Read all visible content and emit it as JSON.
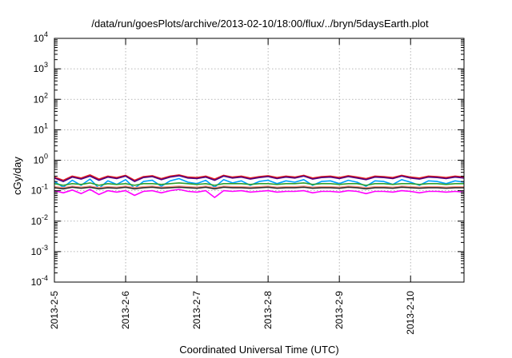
{
  "chart_data": {
    "type": "line",
    "title": "/data/run/goesPlots/archive/2013-02-10/18:00/flux/../bryn/5daysEarth.plot",
    "xlabel": "Coordinated Universal Time (UTC)",
    "ylabel": "cGy/day",
    "yscale": "log",
    "ylim": [
      0.0001,
      10000
    ],
    "xlim": [
      "2013-02-05T00:00",
      "2013-02-10T18:00"
    ],
    "x_ticks": [
      "2013-2-5",
      "2013-2-6",
      "2013-2-7",
      "2013-2-8",
      "2013-2-9",
      "2013-2-10"
    ],
    "y_ticks": [
      {
        "base": "10",
        "exp": "-4",
        "value": 0.0001
      },
      {
        "base": "10",
        "exp": "-3",
        "value": 0.001
      },
      {
        "base": "10",
        "exp": "-2",
        "value": 0.01
      },
      {
        "base": "10",
        "exp": "-1",
        "value": 0.1
      },
      {
        "base": "10",
        "exp": "0",
        "value": 1
      },
      {
        "base": "10",
        "exp": "1",
        "value": 10
      },
      {
        "base": "10",
        "exp": "2",
        "value": 100
      },
      {
        "base": "10",
        "exp": "3",
        "value": 1000
      },
      {
        "base": "10",
        "exp": "4",
        "value": 10000
      }
    ],
    "grid": true,
    "x": [
      "2013-02-05T00:00",
      "2013-02-05T03:00",
      "2013-02-05T06:00",
      "2013-02-05T09:00",
      "2013-02-05T12:00",
      "2013-02-05T15:00",
      "2013-02-05T18:00",
      "2013-02-05T21:00",
      "2013-02-06T00:00",
      "2013-02-06T03:00",
      "2013-02-06T06:00",
      "2013-02-06T09:00",
      "2013-02-06T12:00",
      "2013-02-06T15:00",
      "2013-02-06T18:00",
      "2013-02-06T21:00",
      "2013-02-07T00:00",
      "2013-02-07T03:00",
      "2013-02-07T06:00",
      "2013-02-07T09:00",
      "2013-02-07T12:00",
      "2013-02-07T15:00",
      "2013-02-07T18:00",
      "2013-02-07T21:00",
      "2013-02-08T00:00",
      "2013-02-08T03:00",
      "2013-02-08T06:00",
      "2013-02-08T09:00",
      "2013-02-08T12:00",
      "2013-02-08T15:00",
      "2013-02-08T18:00",
      "2013-02-08T21:00",
      "2013-02-09T00:00",
      "2013-02-09T03:00",
      "2013-02-09T06:00",
      "2013-02-09T09:00",
      "2013-02-09T12:00",
      "2013-02-09T15:00",
      "2013-02-09T18:00",
      "2013-02-09T21:00",
      "2013-02-10T00:00",
      "2013-02-10T03:00",
      "2013-02-10T06:00",
      "2013-02-10T09:00",
      "2013-02-10T12:00",
      "2013-02-10T15:00",
      "2013-02-10T18:00"
    ],
    "series": [
      {
        "color": "#e41a1c",
        "values": [
          0.28,
          0.22,
          0.3,
          0.26,
          0.33,
          0.24,
          0.3,
          0.27,
          0.32,
          0.22,
          0.29,
          0.31,
          0.25,
          0.3,
          0.33,
          0.28,
          0.27,
          0.3,
          0.24,
          0.32,
          0.28,
          0.3,
          0.26,
          0.29,
          0.31,
          0.27,
          0.3,
          0.28,
          0.32,
          0.26,
          0.29,
          0.3,
          0.27,
          0.31,
          0.28,
          0.25,
          0.3,
          0.29,
          0.27,
          0.32,
          0.28,
          0.26,
          0.3,
          0.29,
          0.27,
          0.3,
          0.28
        ]
      },
      {
        "color": "#4b0082",
        "values": [
          0.26,
          0.2,
          0.28,
          0.24,
          0.3,
          0.22,
          0.28,
          0.25,
          0.3,
          0.2,
          0.27,
          0.29,
          0.23,
          0.28,
          0.31,
          0.26,
          0.25,
          0.28,
          0.22,
          0.3,
          0.26,
          0.28,
          0.24,
          0.27,
          0.29,
          0.25,
          0.28,
          0.26,
          0.3,
          0.24,
          0.27,
          0.28,
          0.25,
          0.29,
          0.26,
          0.23,
          0.28,
          0.27,
          0.25,
          0.3,
          0.26,
          0.24,
          0.28,
          0.27,
          0.25,
          0.28,
          0.26
        ]
      },
      {
        "color": "#00a0ff",
        "values": [
          0.2,
          0.13,
          0.22,
          0.15,
          0.24,
          0.12,
          0.21,
          0.16,
          0.23,
          0.12,
          0.2,
          0.22,
          0.14,
          0.21,
          0.25,
          0.19,
          0.17,
          0.22,
          0.13,
          0.23,
          0.18,
          0.21,
          0.15,
          0.2,
          0.22,
          0.17,
          0.21,
          0.19,
          0.23,
          0.15,
          0.2,
          0.21,
          0.17,
          0.22,
          0.19,
          0.14,
          0.21,
          0.2,
          0.16,
          0.23,
          0.19,
          0.15,
          0.21,
          0.2,
          0.17,
          0.21,
          0.19
        ]
      },
      {
        "color": "#2ca02c",
        "values": [
          0.17,
          0.15,
          0.17,
          0.16,
          0.18,
          0.15,
          0.17,
          0.16,
          0.17,
          0.15,
          0.17,
          0.17,
          0.16,
          0.17,
          0.18,
          0.17,
          0.16,
          0.17,
          0.15,
          0.17,
          0.17,
          0.17,
          0.16,
          0.17,
          0.17,
          0.16,
          0.17,
          0.17,
          0.18,
          0.16,
          0.17,
          0.17,
          0.16,
          0.17,
          0.17,
          0.15,
          0.17,
          0.17,
          0.16,
          0.17,
          0.17,
          0.16,
          0.17,
          0.17,
          0.16,
          0.17,
          0.17
        ]
      },
      {
        "color": "#ff9080",
        "values": [
          0.135,
          0.125,
          0.14,
          0.13,
          0.14,
          0.125,
          0.135,
          0.13,
          0.14,
          0.125,
          0.135,
          0.14,
          0.13,
          0.135,
          0.14,
          0.135,
          0.13,
          0.14,
          0.125,
          0.14,
          0.135,
          0.135,
          0.13,
          0.135,
          0.14,
          0.13,
          0.135,
          0.135,
          0.14,
          0.13,
          0.135,
          0.135,
          0.13,
          0.14,
          0.135,
          0.125,
          0.135,
          0.135,
          0.13,
          0.14,
          0.135,
          0.13,
          0.135,
          0.135,
          0.13,
          0.135,
          0.135
        ]
      },
      {
        "color": "#303030",
        "values": [
          0.125,
          0.115,
          0.13,
          0.12,
          0.13,
          0.115,
          0.125,
          0.12,
          0.13,
          0.115,
          0.125,
          0.13,
          0.12,
          0.125,
          0.13,
          0.125,
          0.12,
          0.13,
          0.115,
          0.13,
          0.125,
          0.125,
          0.12,
          0.125,
          0.13,
          0.12,
          0.125,
          0.125,
          0.13,
          0.12,
          0.125,
          0.125,
          0.12,
          0.13,
          0.125,
          0.115,
          0.125,
          0.125,
          0.12,
          0.13,
          0.125,
          0.12,
          0.125,
          0.125,
          0.12,
          0.125,
          0.125
        ]
      },
      {
        "color": "#ff00ff",
        "values": [
          0.1,
          0.085,
          0.105,
          0.08,
          0.11,
          0.075,
          0.1,
          0.09,
          0.1,
          0.07,
          0.095,
          0.1,
          0.085,
          0.1,
          0.11,
          0.095,
          0.09,
          0.1,
          0.06,
          0.1,
          0.095,
          0.1,
          0.09,
          0.095,
          0.1,
          0.09,
          0.095,
          0.095,
          0.1,
          0.085,
          0.095,
          0.095,
          0.09,
          0.1,
          0.095,
          0.08,
          0.095,
          0.095,
          0.09,
          0.1,
          0.095,
          0.085,
          0.095,
          0.095,
          0.09,
          0.095,
          0.09
        ]
      }
    ]
  }
}
